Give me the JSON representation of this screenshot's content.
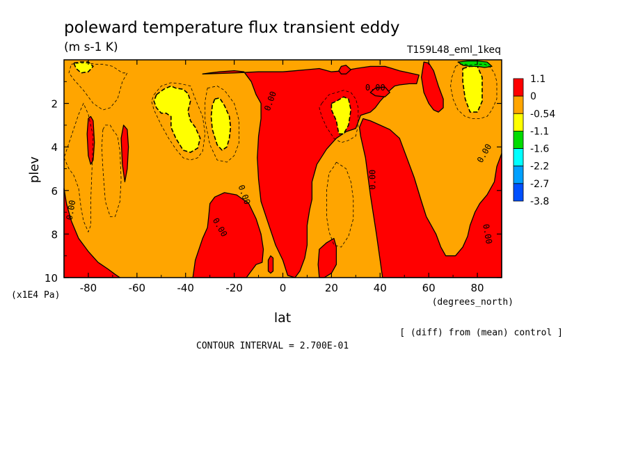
{
  "chart_data": {
    "type": "heatmap",
    "title": "poleward temperature flux transient eddy",
    "units": "(m s-1 K)",
    "experiment": "T159L48_eml_1keq",
    "xlabel": "lat",
    "x_units": "(degrees_north)",
    "ylabel": "plev",
    "y_units": "(x1E4 Pa)",
    "xlim": [
      -90,
      90
    ],
    "ylim": [
      10,
      0
    ],
    "x_ticks": [
      -80,
      -60,
      -40,
      -20,
      0,
      20,
      40,
      60,
      80
    ],
    "y_ticks": [
      2,
      4,
      6,
      8,
      10
    ],
    "colorbar": {
      "levels": [
        "1.1",
        "0",
        "-0.54",
        "-1.1",
        "-1.6",
        "-2.2",
        "-2.7",
        "-3.8"
      ],
      "colors": [
        "#ff0000",
        "#ffa500",
        "#ffff00",
        "#00dc00",
        "#00ffff",
        "#00a0ff",
        "#0050ff"
      ]
    },
    "contour_label": "0.00",
    "note": "[ (diff) from (mean) control ]",
    "contour_interval": "CONTOUR INTERVAL = 2.700E-01",
    "regions": {
      "red": [
        {
          "lat": [
            -90,
            -89,
            -87,
            -84,
            -80,
            -76,
            -72,
            -69,
            -67,
            -67.5,
            -72,
            -78,
            -84,
            -88,
            -90
          ],
          "p": [
            5.9,
            6.6,
            7.4,
            8.2,
            8.8,
            9.3,
            9.6,
            9.85,
            10,
            10,
            10,
            10,
            10,
            10,
            10
          ]
        },
        {
          "lat": [
            -79,
            -78,
            -77.5,
            -78,
            -79,
            -80,
            -80.5,
            -80
          ],
          "p": [
            2.6,
            2.8,
            3.8,
            4.6,
            4.8,
            4.4,
            3.4,
            2.7
          ]
        },
        {
          "lat": [
            -65.5,
            -64,
            -63.5,
            -64,
            -65,
            -66,
            -66.5
          ],
          "p": [
            3.0,
            3.2,
            4.0,
            5.0,
            5.6,
            4.8,
            3.6
          ]
        },
        {
          "lat": [
            -37,
            -36,
            -33,
            -31,
            -30.5,
            -30,
            -28,
            -24,
            -19,
            -14,
            -11,
            -9,
            -8,
            -8.5,
            -11,
            -15,
            -25,
            -33,
            -38,
            -38
          ],
          "p": [
            10,
            9.2,
            8.2,
            7.7,
            7.2,
            6.6,
            6.3,
            6.1,
            6.2,
            6.6,
            7.3,
            8.0,
            8.7,
            9.3,
            9.4,
            10,
            10,
            10,
            10,
            10
          ]
        },
        {
          "lat": [
            -33,
            -30,
            -26,
            -20,
            -16,
            -13,
            -11,
            -9,
            -9,
            -10,
            -10.5,
            -10,
            -9,
            -6,
            -3,
            0,
            2,
            5,
            7,
            9,
            10,
            10,
            11,
            12,
            12,
            14,
            18,
            22,
            26,
            30,
            32,
            36,
            38,
            40,
            44,
            46,
            48,
            52,
            55,
            56,
            52,
            48,
            45,
            42,
            36,
            30,
            25,
            20,
            15,
            10,
            5,
            0,
            -10,
            -20,
            -33
          ],
          "p": [
            0.65,
            0.6,
            0.55,
            0.5,
            0.55,
            1.0,
            1.6,
            2.0,
            2.7,
            3.5,
            4.5,
            5.5,
            6.5,
            7.5,
            8.5,
            9.2,
            9.9,
            10,
            9.7,
            9.1,
            8.5,
            7.6,
            6.9,
            6.4,
            5.6,
            4.8,
            4.1,
            3.6,
            3.3,
            3.15,
            2.55,
            2.4,
            2.2,
            1.9,
            1.4,
            1.2,
            1.15,
            1.1,
            1.1,
            0.7,
            0.6,
            0.5,
            0.4,
            0.3,
            0.3,
            0.4,
            0.5,
            0.55,
            0.4,
            0.45,
            0.5,
            0.55,
            0.55,
            0.6,
            0.65
          ]
        },
        {
          "lat": [
            15,
            18,
            21,
            22,
            22,
            20,
            17,
            15,
            14.5
          ],
          "p": [
            8.7,
            8.4,
            8.2,
            8.6,
            9.4,
            9.8,
            10,
            10,
            9.4
          ]
        },
        {
          "lat": [
            41,
            40,
            38.5,
            36,
            34,
            32,
            31.5,
            33,
            36,
            40,
            44,
            48,
            51,
            54,
            57,
            59,
            61,
            63,
            65,
            67,
            71,
            74,
            76,
            77,
            79,
            81,
            84,
            87,
            88,
            90,
            90,
            60,
            41
          ],
          "p": [
            10,
            9.2,
            8.0,
            6.2,
            4.5,
            3.5,
            3.1,
            2.7,
            2.8,
            3.0,
            3.2,
            3.6,
            4.5,
            5.4,
            6.5,
            7.2,
            7.6,
            8.0,
            8.6,
            9.0,
            9.0,
            8.6,
            8.1,
            7.6,
            7.0,
            6.6,
            6.2,
            5.6,
            4.9,
            4.3,
            10,
            10,
            10
          ]
        },
        {
          "lat": [
            58,
            60,
            62,
            64,
            66,
            66,
            64,
            62,
            60,
            58,
            57
          ],
          "p": [
            0.1,
            0.15,
            0.5,
            1.2,
            1.8,
            2.2,
            2.4,
            2.3,
            2.0,
            1.5,
            0.8
          ]
        },
        {
          "lat": [
            38,
            42,
            44,
            42,
            38,
            36
          ],
          "p": [
            1.3,
            1.25,
            1.5,
            1.7,
            1.65,
            1.5
          ]
        },
        {
          "lat": [
            24,
            26,
            28,
            26,
            24,
            23
          ],
          "p": [
            0.3,
            0.25,
            0.45,
            0.65,
            0.65,
            0.5
          ]
        },
        {
          "lat": [
            -5,
            -4,
            -4,
            -5,
            -6,
            -6
          ],
          "p": [
            9.0,
            9.1,
            9.7,
            9.8,
            9.7,
            9.2
          ]
        }
      ],
      "yellow": [
        {
          "lat": [
            -52,
            -49,
            -46,
            -44,
            -41,
            -39,
            -38,
            -39,
            -38,
            -36,
            -34,
            -35,
            -38,
            -41,
            -44,
            -46,
            -46,
            -48,
            -50,
            -52,
            -53
          ],
          "p": [
            1.6,
            1.35,
            1.2,
            1.3,
            1.35,
            1.55,
            1.9,
            2.35,
            2.8,
            3.1,
            3.6,
            4.05,
            4.25,
            4.15,
            3.6,
            3.1,
            2.6,
            2.45,
            2.45,
            2.2,
            1.9
          ]
        },
        {
          "lat": [
            -28,
            -26,
            -24,
            -22,
            -21.5,
            -22,
            -23,
            -25,
            -27,
            -29,
            -29.5,
            -29
          ],
          "p": [
            1.8,
            1.75,
            2.1,
            2.6,
            3.1,
            3.6,
            4.0,
            4.15,
            3.9,
            3.2,
            2.6,
            2.1
          ]
        },
        {
          "lat": [
            -86,
            -83,
            -80,
            -78,
            -80,
            -83,
            -85
          ],
          "p": [
            0.15,
            0.1,
            0.1,
            0.3,
            0.55,
            0.6,
            0.4
          ]
        },
        {
          "lat": [
            20,
            22,
            25,
            27,
            28,
            27,
            25,
            23,
            22,
            20
          ],
          "p": [
            2.0,
            1.9,
            1.7,
            1.8,
            2.3,
            3.0,
            3.4,
            3.4,
            2.8,
            2.3
          ]
        },
        {
          "lat": [
            74,
            77,
            80,
            82,
            82,
            80,
            77,
            75,
            74
          ],
          "p": [
            0.4,
            0.3,
            0.3,
            0.8,
            1.9,
            2.4,
            2.4,
            1.8,
            1.0
          ]
        }
      ],
      "green": [
        {
          "lat": [
            72,
            76,
            80,
            84,
            86,
            83,
            80,
            77,
            74
          ],
          "p": [
            0.1,
            0.05,
            0.05,
            0.1,
            0.3,
            0.35,
            0.3,
            0.3,
            0.25
          ]
        }
      ],
      "dashed_contours": [
        {
          "lat": [
            -53,
            -50,
            -46,
            -42,
            -38,
            -36,
            -33,
            -32,
            -33,
            -35,
            -38,
            -41,
            -44,
            -47,
            -50,
            -53,
            -54
          ],
          "p": [
            1.6,
            1.2,
            1.05,
            1.1,
            1.2,
            1.8,
            2.6,
            3.4,
            4.2,
            4.5,
            4.6,
            4.5,
            4.1,
            3.6,
            3.0,
            2.3,
            1.9
          ]
        },
        {
          "lat": [
            -31,
            -27,
            -24,
            -20,
            -18,
            -18,
            -20,
            -23,
            -27,
            -30,
            -32,
            -32
          ],
          "p": [
            1.3,
            1.2,
            1.4,
            2.0,
            2.8,
            3.8,
            4.4,
            4.7,
            4.6,
            3.9,
            2.8,
            1.9
          ]
        },
        {
          "lat": [
            -90,
            -88,
            -86,
            -84,
            -83,
            -82,
            -80,
            -79,
            -79,
            -78.5,
            -78,
            -80,
            -82,
            -84
          ],
          "p": [
            4.5,
            5.0,
            5.3,
            5.9,
            6.8,
            7.4,
            7.9,
            7.6,
            6.5,
            5.0,
            3.5,
            2.5,
            2.0,
            2.5
          ]
        },
        {
          "lat": [
            -74,
            -73,
            -71,
            -70,
            -68,
            -67,
            -66.5,
            -67,
            -69,
            -71,
            -73,
            -74,
            -74.5
          ],
          "p": [
            3.2,
            3.0,
            3.0,
            3.2,
            3.5,
            4.2,
            5.5,
            6.5,
            7.2,
            7.2,
            6.5,
            5.0,
            4.0
          ]
        },
        {
          "lat": [
            -87,
            -84,
            -80,
            -77,
            -74,
            -72,
            -70,
            -68,
            -66,
            -64,
            -66,
            -68,
            -71,
            -74,
            -78,
            -82,
            -86,
            -88
          ],
          "p": [
            0.2,
            0.15,
            0.15,
            0.2,
            0.2,
            0.25,
            0.3,
            0.45,
            0.6,
            0.6,
            1.0,
            1.8,
            2.2,
            2.3,
            2.0,
            1.4,
            0.9,
            0.6
          ]
        },
        {
          "lat": [
            22,
            26,
            28,
            29,
            29,
            27,
            24,
            21,
            19,
            18,
            18,
            19,
            21
          ],
          "p": [
            4.7,
            5.0,
            5.6,
            6.4,
            7.3,
            8.1,
            8.6,
            8.5,
            7.9,
            7.2,
            6.0,
            5.2,
            4.9
          ]
        },
        {
          "lat": [
            16,
            19,
            22,
            25,
            28,
            30,
            31,
            31,
            30,
            27,
            24,
            21,
            18,
            16,
            15
          ],
          "p": [
            2.0,
            1.6,
            1.5,
            1.4,
            1.5,
            1.8,
            2.2,
            3.0,
            3.5,
            3.7,
            3.8,
            3.6,
            3.1,
            2.6,
            2.2
          ]
        },
        {
          "lat": [
            71,
            73,
            75,
            77,
            80,
            83,
            85,
            87,
            88,
            88,
            86,
            84,
            81,
            78,
            75,
            72,
            70,
            69,
            69.5,
            70.5
          ],
          "p": [
            0.3,
            0.2,
            0.2,
            0.25,
            0.2,
            0.2,
            0.3,
            0.6,
            1.0,
            1.8,
            2.3,
            2.6,
            2.7,
            2.7,
            2.6,
            2.3,
            1.8,
            1.2,
            0.8,
            0.5
          ]
        }
      ]
    }
  }
}
